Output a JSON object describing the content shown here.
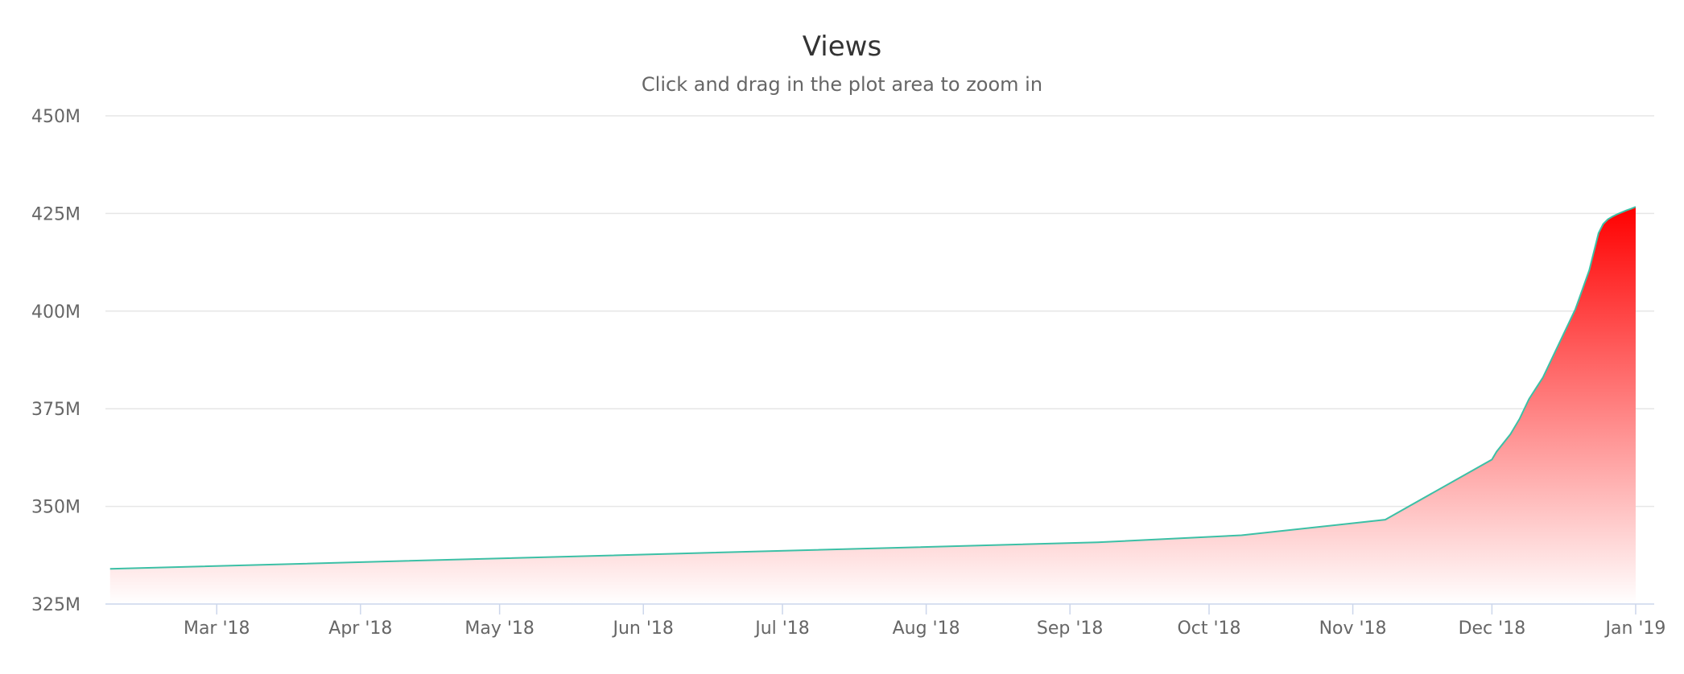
{
  "chart_data": {
    "type": "area",
    "title": "Views",
    "subtitle": "Click and drag in the plot area to zoom in",
    "xlabel": "",
    "ylabel": "",
    "grid": true,
    "legend": "none",
    "ylim": [
      325000000,
      450000000
    ],
    "xlim": [
      "2018-02-05",
      "2019-01-05"
    ],
    "y_ticks": [
      {
        "value": 325000000,
        "label": "325M"
      },
      {
        "value": 350000000,
        "label": "350M"
      },
      {
        "value": 375000000,
        "label": "375M"
      },
      {
        "value": 400000000,
        "label": "400M"
      },
      {
        "value": 425000000,
        "label": "425M"
      },
      {
        "value": 450000000,
        "label": "450M"
      }
    ],
    "x_ticks": [
      {
        "value": "2018-03-01",
        "label": "Mar '18"
      },
      {
        "value": "2018-04-01",
        "label": "Apr '18"
      },
      {
        "value": "2018-05-01",
        "label": "May '18"
      },
      {
        "value": "2018-06-01",
        "label": "Jun '18"
      },
      {
        "value": "2018-07-01",
        "label": "Jul '18"
      },
      {
        "value": "2018-08-01",
        "label": "Aug '18"
      },
      {
        "value": "2018-09-01",
        "label": "Sep '18"
      },
      {
        "value": "2018-10-01",
        "label": "Oct '18"
      },
      {
        "value": "2018-11-01",
        "label": "Nov '18"
      },
      {
        "value": "2018-12-01",
        "label": "Dec '18"
      },
      {
        "value": "2019-01-01",
        "label": "Jan '19"
      }
    ],
    "colors": {
      "line": "#3cc0a6",
      "fill_top": "#ff0000",
      "fill_bottom": "#ffffff"
    },
    "series": [
      {
        "x": [
          "2018-02-06",
          "2018-09-07",
          "2018-10-08",
          "2018-11-08",
          "2018-12-01",
          "2018-12-02",
          "2018-12-05",
          "2018-12-07",
          "2018-12-09",
          "2018-12-12",
          "2018-12-14",
          "2018-12-17",
          "2018-12-19",
          "2018-12-22",
          "2018-12-24",
          "2018-12-25",
          "2018-12-26",
          "2018-12-27",
          "2018-12-28",
          "2018-12-29",
          "2018-12-30",
          "2018-12-31",
          "2019-01-01"
        ],
        "y": [
          334000000,
          340800000,
          342600000,
          346600000,
          362000000,
          364000000,
          368500000,
          372500000,
          377500000,
          383000000,
          388000000,
          395500000,
          400500000,
          410500000,
          420000000,
          422300000,
          423500000,
          424200000,
          424800000,
          425300000,
          425800000,
          426200000,
          426700000
        ]
      }
    ]
  }
}
